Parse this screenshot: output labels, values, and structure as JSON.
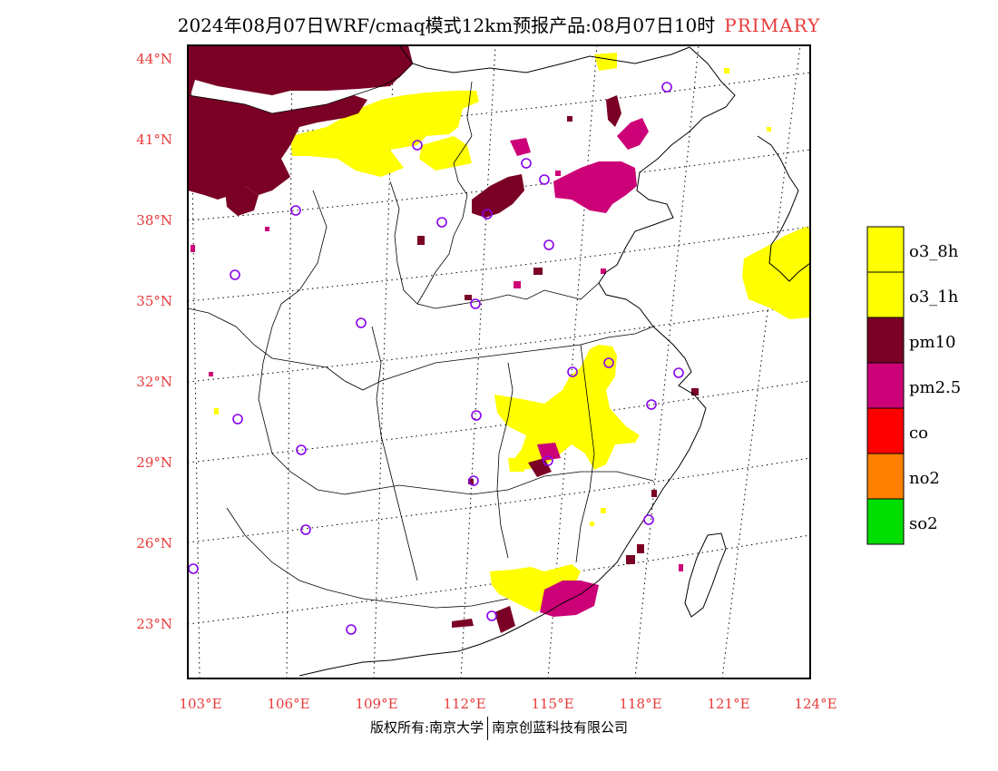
{
  "title": {
    "main": "2024年08月07日WRF/cmaq模式12km预报产品:08月07日10时",
    "tag": "PRIMARY"
  },
  "axes": {
    "lat_labels": [
      "44°N",
      "41°N",
      "38°N",
      "35°N",
      "32°N",
      "29°N",
      "26°N",
      "23°N"
    ],
    "lon_labels": [
      "103°E",
      "106°E",
      "109°E",
      "112°E",
      "115°E",
      "118°E",
      "121°E",
      "124°E"
    ]
  },
  "legend": {
    "items": [
      {
        "label": "o3_8h",
        "color": "#ffff00"
      },
      {
        "label": "o3_1h",
        "color": "#ffff00"
      },
      {
        "label": "pm10",
        "color": "#7a0025"
      },
      {
        "label": "pm2.5",
        "color": "#cc0077"
      },
      {
        "label": "co",
        "color": "#ff0000"
      },
      {
        "label": "no2",
        "color": "#ff7f00"
      },
      {
        "label": "so2",
        "color": "#00dd00"
      }
    ]
  },
  "colors": {
    "tick": "#e83a3a",
    "station": "#8800ee",
    "o3": "#ffff00",
    "pm10": "#7a0025",
    "pm25": "#cc0077"
  },
  "footer": {
    "left": "版权所有:南京大学",
    "right": "南京创蓝科技有限公司"
  }
}
